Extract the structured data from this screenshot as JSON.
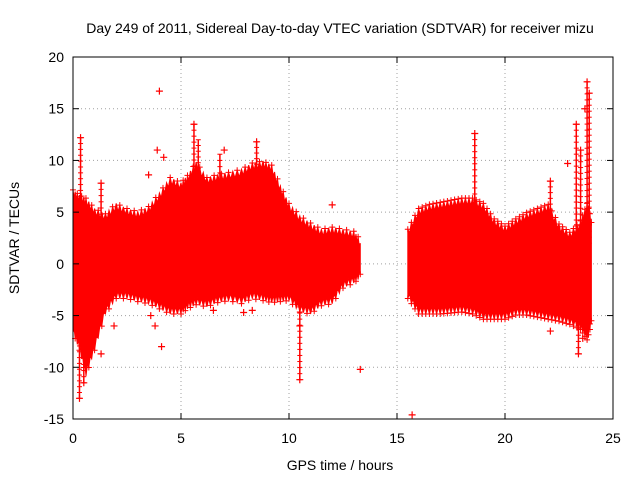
{
  "chart_data": {
    "type": "scatter",
    "title": "Day 249 of 2011, Sidereal Day-to-day VTEC variation (SDTVAR) for receiver mizu",
    "xlabel": "GPS time / hours",
    "ylabel": "SDTVAR / TECUs",
    "xlim": [
      0,
      25
    ],
    "ylim": [
      -15,
      20
    ],
    "xticks": [
      0,
      5,
      10,
      15,
      20,
      25
    ],
    "xtick_labels": [
      "0",
      "5",
      "10",
      "15",
      "20",
      "25"
    ],
    "yticks": [
      -15,
      -10,
      -5,
      0,
      5,
      10,
      15,
      20
    ],
    "ytick_labels": [
      "-15",
      "-10",
      "-5",
      "0",
      "5",
      "10",
      "15",
      "20"
    ],
    "grid": true,
    "series": [
      {
        "name": "SDTVAR",
        "color": "#ff0000",
        "marker": "plus",
        "envelope_segments": [
          {
            "x": [
              0.0,
              0.3,
              0.6,
              1.0,
              1.5,
              2.0,
              2.5,
              3.0,
              3.5,
              4.0,
              4.5,
              5.0,
              5.3,
              5.7,
              6.2,
              6.7,
              7.2,
              7.8,
              8.3,
              8.8,
              9.2,
              9.6,
              10.0,
              10.5,
              11.0,
              11.5,
              12.0,
              12.5,
              13.0,
              13.3
            ],
            "upper": [
              6.8,
              6.3,
              6.0,
              5.0,
              4.5,
              5.5,
              5.0,
              4.7,
              5.2,
              6.5,
              8.0,
              7.5,
              8.2,
              9.5,
              8.0,
              8.3,
              8.5,
              8.8,
              9.4,
              9.6,
              9.2,
              7.2,
              5.5,
              4.3,
              3.6,
              3.0,
              3.2,
              3.0,
              2.8,
              2.0
            ],
            "lower": [
              -6.3,
              -8.0,
              -10.5,
              -8.0,
              -4.5,
              -3.0,
              -3.0,
              -3.3,
              -3.5,
              -4.0,
              -4.5,
              -4.5,
              -4.0,
              -3.6,
              -3.8,
              -3.4,
              -3.2,
              -3.5,
              -3.0,
              -3.2,
              -3.4,
              -3.3,
              -3.2,
              -4.3,
              -4.5,
              -3.7,
              -3.5,
              -2.0,
              -1.5,
              -1.0
            ]
          },
          {
            "x": [
              15.5,
              16.0,
              16.5,
              17.0,
              17.5,
              18.0,
              18.5,
              19.0,
              19.5,
              20.0,
              20.5,
              21.0,
              21.5,
              22.0,
              22.5,
              23.0,
              23.5,
              23.8,
              24.0
            ],
            "upper": [
              3.0,
              5.0,
              5.4,
              5.6,
              5.8,
              6.0,
              6.0,
              5.5,
              4.0,
              3.3,
              4.0,
              4.6,
              5.0,
              5.4,
              3.5,
              2.7,
              3.8,
              5.5,
              4.0
            ],
            "lower": [
              -3.0,
              -4.5,
              -4.5,
              -4.5,
              -4.4,
              -4.3,
              -4.5,
              -5.0,
              -5.0,
              -5.0,
              -4.6,
              -4.6,
              -4.8,
              -5.0,
              -5.2,
              -5.5,
              -6.0,
              -7.0,
              -5.5
            ]
          }
        ],
        "outliers": [
          {
            "x": 0.3,
            "y": -13.0
          },
          {
            "x": 0.35,
            "y": 12.2
          },
          {
            "x": 0.5,
            "y": -11.5
          },
          {
            "x": 1.3,
            "y": -8.7
          },
          {
            "x": 1.3,
            "y": 7.8
          },
          {
            "x": 1.9,
            "y": -6.0
          },
          {
            "x": 3.5,
            "y": 8.6
          },
          {
            "x": 3.6,
            "y": -5.0
          },
          {
            "x": 3.8,
            "y": -6.0
          },
          {
            "x": 3.9,
            "y": 11.0
          },
          {
            "x": 4.0,
            "y": 16.7
          },
          {
            "x": 4.2,
            "y": 10.3
          },
          {
            "x": 4.1,
            "y": -8.0
          },
          {
            "x": 5.6,
            "y": 13.5
          },
          {
            "x": 6.5,
            "y": -4.5
          },
          {
            "x": 7.0,
            "y": 11.0
          },
          {
            "x": 7.9,
            "y": -4.7
          },
          {
            "x": 8.5,
            "y": 11.8
          },
          {
            "x": 8.3,
            "y": -4.5
          },
          {
            "x": 10.5,
            "y": -6.0
          },
          {
            "x": 10.5,
            "y": -11.2
          },
          {
            "x": 12.0,
            "y": 5.7
          },
          {
            "x": 13.3,
            "y": -10.2
          },
          {
            "x": 15.7,
            "y": -14.6
          },
          {
            "x": 18.6,
            "y": 12.6
          },
          {
            "x": 22.1,
            "y": -6.5
          },
          {
            "x": 22.1,
            "y": 8.0
          },
          {
            "x": 22.9,
            "y": 9.7
          },
          {
            "x": 23.3,
            "y": 13.5
          },
          {
            "x": 23.5,
            "y": 11.0
          },
          {
            "x": 23.4,
            "y": -8.7
          },
          {
            "x": 23.8,
            "y": 17.6
          },
          {
            "x": 23.9,
            "y": 16.5
          },
          {
            "x": 23.7,
            "y": 15.0
          },
          {
            "x": 23.6,
            "y": -7.2
          },
          {
            "x": 23.9,
            "y": -5.8
          }
        ],
        "spikes": [
          {
            "x": 0.35,
            "y0": 2.0,
            "y1": 12.2
          },
          {
            "x": 0.3,
            "y0": -4.0,
            "y1": -13.0
          },
          {
            "x": 0.5,
            "y0": -5.0,
            "y1": -11.5
          },
          {
            "x": 1.3,
            "y0": 3.0,
            "y1": 7.8
          },
          {
            "x": 5.6,
            "y0": 6.0,
            "y1": 13.5
          },
          {
            "x": 5.8,
            "y0": 7.0,
            "y1": 12.0
          },
          {
            "x": 6.8,
            "y0": 7.0,
            "y1": 10.6
          },
          {
            "x": 8.5,
            "y0": 8.0,
            "y1": 11.8
          },
          {
            "x": 10.5,
            "y0": -3.0,
            "y1": -11.2
          },
          {
            "x": 18.6,
            "y0": 5.0,
            "y1": 12.6
          },
          {
            "x": 22.1,
            "y0": 3.0,
            "y1": 8.0
          },
          {
            "x": 23.3,
            "y0": 2.5,
            "y1": 13.5
          },
          {
            "x": 23.5,
            "y0": 2.0,
            "y1": 11.0
          },
          {
            "x": 23.8,
            "y0": 3.0,
            "y1": 17.6
          },
          {
            "x": 23.9,
            "y0": 2.0,
            "y1": 16.5
          },
          {
            "x": 23.4,
            "y0": -4.5,
            "y1": -8.7
          }
        ]
      }
    ]
  }
}
